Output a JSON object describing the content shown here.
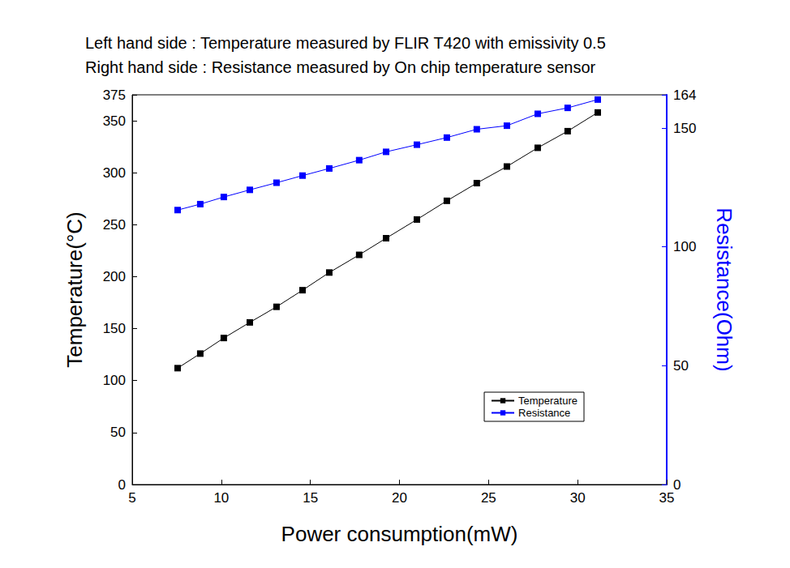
{
  "chart_data": {
    "type": "line",
    "title": "Left hand side : Temperature measured by FLIR T420 with emissivity 0.5",
    "subtitle": "Right hand side : Resistance measured by On chip temperature sensor",
    "x_label": "Power consumption(mW)",
    "y_label": "Temperature(°C)",
    "y2_label": "Resistance(Ohm)",
    "x": [
      7.55,
      8.82,
      10.14,
      11.6,
      13.1,
      14.56,
      16.06,
      17.74,
      19.25,
      20.98,
      22.66,
      24.34,
      26.03,
      27.76,
      29.44,
      31.13
    ],
    "series": [
      {
        "name": "Temperature",
        "color": "#000000",
        "marker": "square",
        "line_style": "solid",
        "values": [
          112,
          126,
          141,
          156,
          171,
          187,
          204,
          221,
          237,
          255,
          273,
          290,
          306,
          324,
          340,
          358
        ]
      },
      {
        "name": "Resistance",
        "color": "#0000ff",
        "marker": "square",
        "line_style": "solid",
        "axis": "y2",
        "values": [
          115.5,
          118,
          121,
          124,
          127,
          130,
          133,
          136.5,
          140,
          143,
          146,
          149.5,
          151,
          156,
          158.5,
          162
        ]
      }
    ],
    "xlim": [
      5,
      35
    ],
    "xticks": [
      5,
      10,
      15,
      20,
      25,
      30,
      35
    ],
    "ylim": [
      0,
      375
    ],
    "yticks": [
      0,
      50,
      100,
      150,
      200,
      250,
      300,
      350
    ],
    "y2lim": [
      0,
      164
    ],
    "y2ticks": [
      0,
      50,
      100,
      150
    ],
    "grid": false,
    "legend": "lower right"
  }
}
